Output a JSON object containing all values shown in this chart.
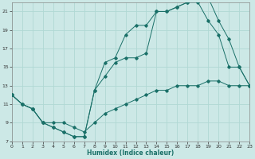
{
  "xlabel": "Humidex (Indice chaleur)",
  "bg_color": "#cce8e6",
  "line_color": "#1a7068",
  "grid_color": "#b0d8d4",
  "xlim": [
    0,
    23
  ],
  "ylim": [
    7,
    22
  ],
  "xticks": [
    0,
    1,
    2,
    3,
    4,
    5,
    6,
    7,
    8,
    9,
    10,
    11,
    12,
    13,
    14,
    15,
    16,
    17,
    18,
    19,
    20,
    21,
    22,
    23
  ],
  "yticks": [
    7,
    9,
    11,
    13,
    15,
    17,
    19,
    21
  ],
  "line1_x": [
    0,
    1,
    2,
    3,
    4,
    5,
    6,
    7,
    8,
    9,
    10,
    11,
    12,
    13,
    14,
    15,
    16,
    17,
    18,
    19,
    20,
    21,
    22,
    23
  ],
  "line1_y": [
    12,
    11,
    10.5,
    9,
    8.5,
    8,
    7.5,
    7.5,
    12.5,
    15.5,
    16,
    18.5,
    19.5,
    19.5,
    21,
    21,
    21.5,
    22,
    22.5,
    22.5,
    20,
    18,
    15,
    13
  ],
  "line2_x": [
    0,
    1,
    2,
    3,
    4,
    5,
    6,
    7,
    8,
    9,
    10,
    11,
    12,
    13,
    14,
    15,
    16,
    17,
    18,
    19,
    20,
    21,
    22,
    23
  ],
  "line2_y": [
    12,
    11,
    10.5,
    9,
    9,
    9,
    8.5,
    8,
    9,
    10,
    10.5,
    11,
    11.5,
    12,
    12.5,
    12.5,
    13,
    13,
    13,
    13.5,
    13.5,
    13,
    13,
    13
  ],
  "line3_x": [
    0,
    1,
    2,
    3,
    4,
    5,
    6,
    7,
    8,
    9,
    10,
    11,
    12,
    13,
    14,
    15,
    16,
    17,
    18,
    19,
    20,
    21,
    22,
    23
  ],
  "line3_y": [
    12,
    11,
    10.5,
    9,
    8.5,
    8,
    7.5,
    7.5,
    12.5,
    14,
    15.5,
    16,
    16,
    16.5,
    21,
    21,
    21.5,
    22,
    22,
    20,
    18.5,
    15,
    15,
    13
  ]
}
